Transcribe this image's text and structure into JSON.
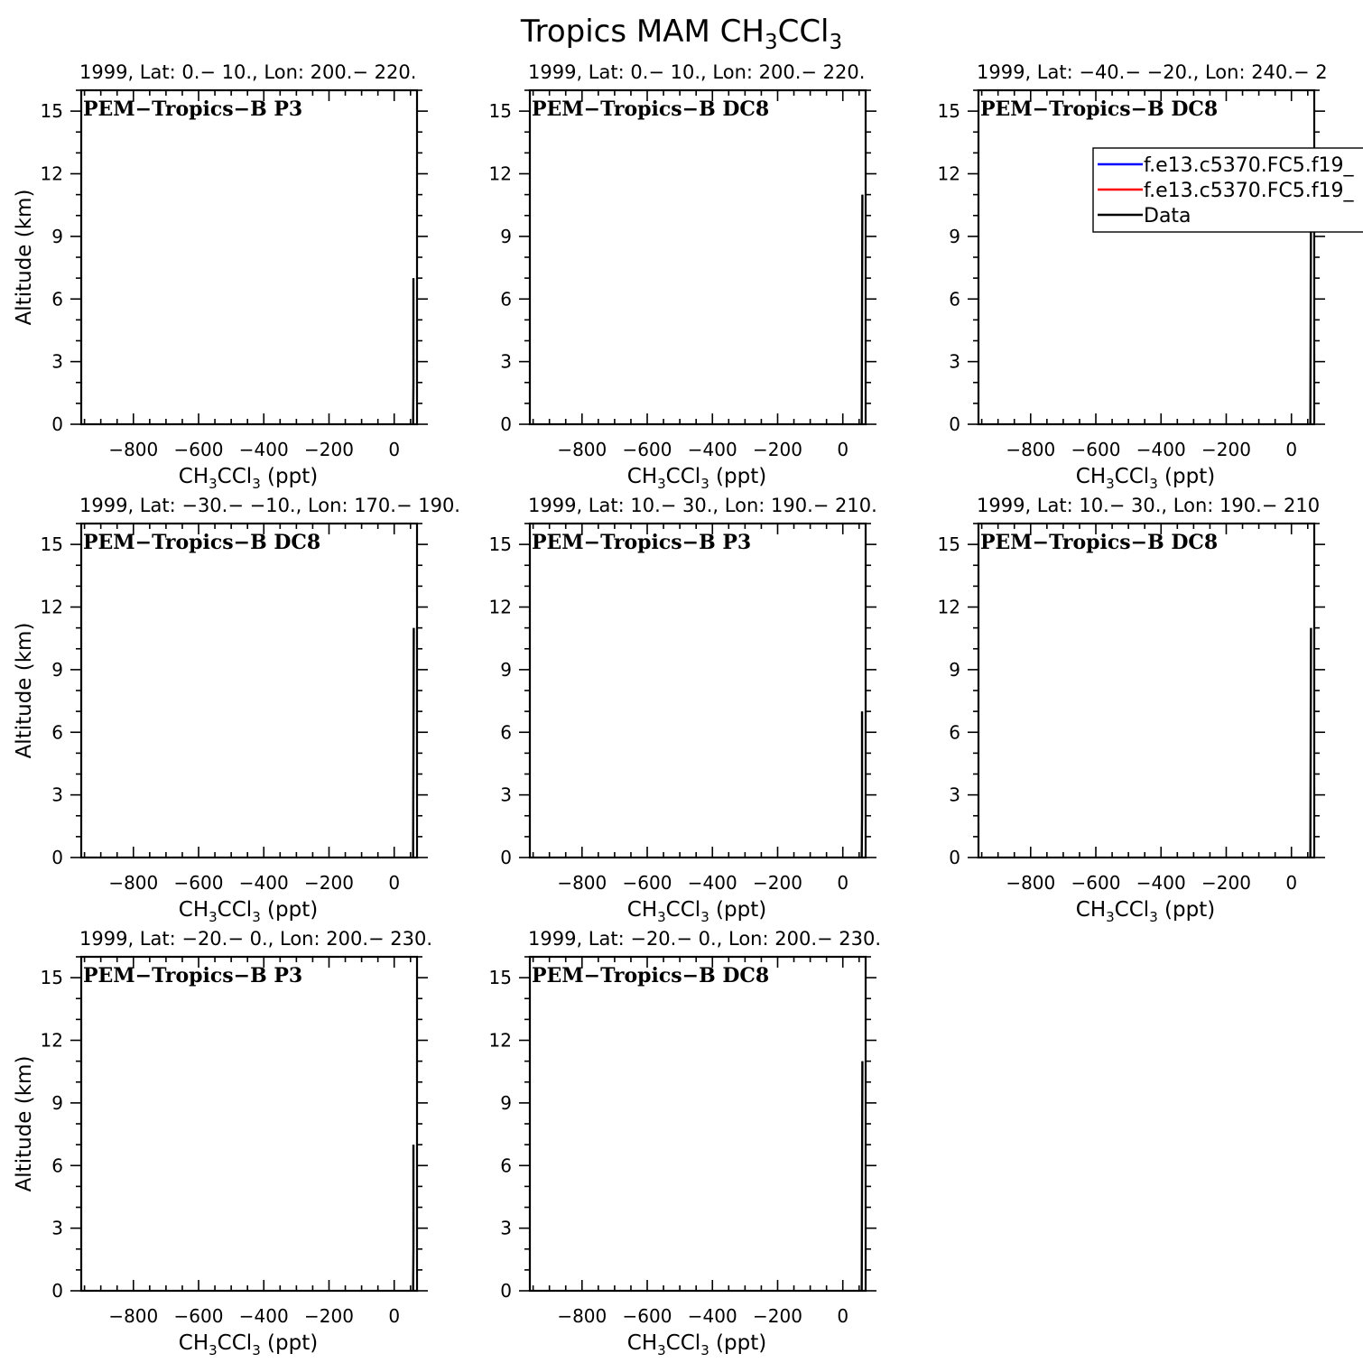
{
  "figure_title": {
    "text": "Tropics MAM CH",
    "sub1": "3",
    "mid": "CCl",
    "sub2": "3"
  },
  "x_label": {
    "a": "CH",
    "s1": "3",
    "b": "CCl",
    "s2": "3",
    "c": " (ppt)"
  },
  "y_label": "Altitude (km)",
  "legend": {
    "placement": "top-right of panel 3",
    "entries": [
      {
        "label": "f.e13.c5370.FC5.f19_",
        "color": "#0000ff"
      },
      {
        "label": "f.e13.c5370.FC5.f19_",
        "color": "#ff0000"
      },
      {
        "label": "Data",
        "color": "#000000"
      }
    ]
  },
  "chart_data": [
    {
      "type": "line",
      "title": "1999, Lat: 0.− 10., Lon: 200.− 220.",
      "annotation": "PEM−Tropics−B P3",
      "xlabel": "CH3CCl3 (ppt)",
      "ylabel": "Altitude (km)",
      "xlim": [
        -960,
        70
      ],
      "ylim": [
        0,
        16
      ],
      "xticks": [
        "−800",
        "−600",
        "−400",
        "−200",
        "0"
      ],
      "yticks": [
        "0",
        "3",
        "6",
        "9",
        "12",
        "15"
      ],
      "series": [
        {
          "color": "#000000",
          "x": [
            58,
            59,
            59
          ],
          "y": [
            0,
            2,
            7
          ]
        }
      ]
    },
    {
      "type": "line",
      "title": "1999, Lat: 0.− 10., Lon: 200.− 220.",
      "annotation": "PEM−Tropics−B DC8",
      "xlabel": "CH3CCl3 (ppt)",
      "ylabel": "Altitude (km)",
      "xlim": [
        -960,
        70
      ],
      "ylim": [
        0,
        16
      ],
      "xticks": [
        "−800",
        "−600",
        "−400",
        "−200",
        "0"
      ],
      "yticks": [
        "0",
        "3",
        "6",
        "9",
        "12",
        "15"
      ],
      "series": [
        {
          "color": "#000000",
          "x": [
            58,
            59,
            60
          ],
          "y": [
            0,
            5,
            11
          ]
        }
      ]
    },
    {
      "type": "line",
      "title": "1999, Lat: −40.− −20., Lon: 240.− 2",
      "annotation": "PEM−Tropics−B DC8",
      "xlabel": "CH3CCl3 (ppt)",
      "ylabel": "Altitude (km)",
      "xlim": [
        -960,
        70
      ],
      "ylim": [
        0,
        16
      ],
      "xticks": [
        "−800",
        "−600",
        "−400",
        "−200",
        "0"
      ],
      "yticks": [
        "0",
        "3",
        "6",
        "9",
        "12",
        "15"
      ],
      "series": [
        {
          "color": "#000000",
          "x": [
            58,
            59,
            60
          ],
          "y": [
            0,
            5,
            11
          ]
        }
      ],
      "legend": true
    },
    {
      "type": "line",
      "title": "1999, Lat: −30.− −10., Lon: 170.− 190.",
      "annotation": "PEM−Tropics−B DC8",
      "xlabel": "CH3CCl3 (ppt)",
      "ylabel": "Altitude (km)",
      "xlim": [
        -960,
        70
      ],
      "ylim": [
        0,
        16
      ],
      "xticks": [
        "−800",
        "−600",
        "−400",
        "−200",
        "0"
      ],
      "yticks": [
        "0",
        "3",
        "6",
        "9",
        "12",
        "15"
      ],
      "series": [
        {
          "color": "#000000",
          "x": [
            58,
            59,
            60
          ],
          "y": [
            0,
            5,
            11
          ]
        }
      ]
    },
    {
      "type": "line",
      "title": "1999, Lat: 10.− 30., Lon: 190.− 210.",
      "annotation": "PEM−Tropics−B P3",
      "xlabel": "CH3CCl3 (ppt)",
      "ylabel": "Altitude (km)",
      "xlim": [
        -960,
        70
      ],
      "ylim": [
        0,
        16
      ],
      "xticks": [
        "−800",
        "−600",
        "−400",
        "−200",
        "0"
      ],
      "yticks": [
        "0",
        "3",
        "6",
        "9",
        "12",
        "15"
      ],
      "series": [
        {
          "color": "#000000",
          "x": [
            58,
            59,
            59
          ],
          "y": [
            0,
            2,
            7
          ]
        }
      ]
    },
    {
      "type": "line",
      "title": "1999, Lat: 10.− 30., Lon: 190.− 210",
      "annotation": "PEM−Tropics−B DC8",
      "xlabel": "CH3CCl3 (ppt)",
      "ylabel": "Altitude (km)",
      "xlim": [
        -960,
        70
      ],
      "ylim": [
        0,
        16
      ],
      "xticks": [
        "−800",
        "−600",
        "−400",
        "−200",
        "0"
      ],
      "yticks": [
        "0",
        "3",
        "6",
        "9",
        "12",
        "15"
      ],
      "series": [
        {
          "color": "#000000",
          "x": [
            58,
            59,
            60
          ],
          "y": [
            0,
            5,
            11
          ]
        }
      ]
    },
    {
      "type": "line",
      "title": "1999, Lat: −20.− 0., Lon: 200.− 230.",
      "annotation": "PEM−Tropics−B P3",
      "xlabel": "CH3CCl3 (ppt)",
      "ylabel": "Altitude (km)",
      "xlim": [
        -960,
        70
      ],
      "ylim": [
        0,
        16
      ],
      "xticks": [
        "−800",
        "−600",
        "−400",
        "−200",
        "0"
      ],
      "yticks": [
        "0",
        "3",
        "6",
        "9",
        "12",
        "15"
      ],
      "series": [
        {
          "color": "#000000",
          "x": [
            58,
            59,
            59
          ],
          "y": [
            0,
            2,
            7
          ]
        }
      ]
    },
    {
      "type": "line",
      "title": "1999, Lat: −20.− 0., Lon: 200.− 230.",
      "annotation": "PEM−Tropics−B DC8",
      "xlabel": "CH3CCl3 (ppt)",
      "ylabel": "Altitude (km)",
      "xlim": [
        -960,
        70
      ],
      "ylim": [
        0,
        16
      ],
      "xticks": [
        "−800",
        "−600",
        "−400",
        "−200",
        "0"
      ],
      "yticks": [
        "0",
        "3",
        "6",
        "9",
        "12",
        "15"
      ],
      "series": [
        {
          "color": "#000000",
          "x": [
            58,
            59,
            60
          ],
          "y": [
            0,
            5,
            11
          ]
        }
      ]
    }
  ]
}
